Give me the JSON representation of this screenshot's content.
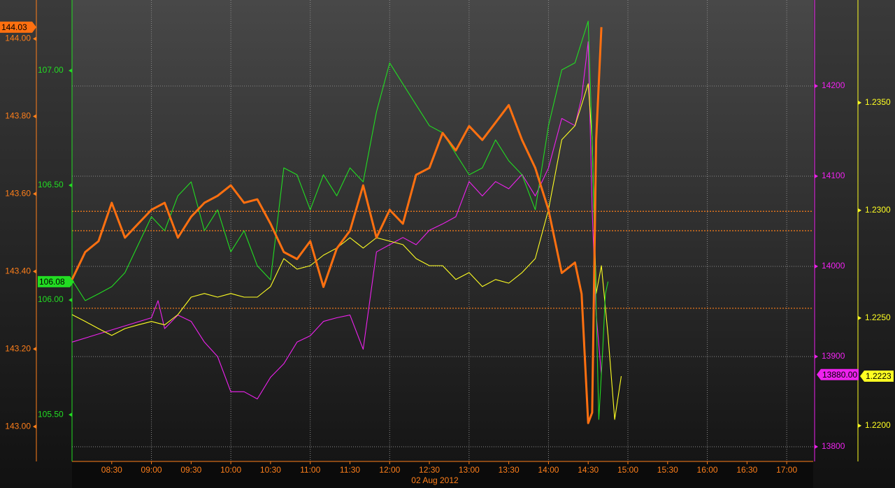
{
  "chart_data": {
    "type": "line",
    "x_label": "02 Aug 2012",
    "xlim": [
      "08:00",
      "17:20"
    ],
    "xticks": [
      "08:30",
      "09:00",
      "09:30",
      "10:00",
      "10:30",
      "11:00",
      "11:30",
      "12:00",
      "12:30",
      "13:00",
      "13:30",
      "14:00",
      "14:30",
      "15:00",
      "15:30",
      "16:00",
      "16:30",
      "17:00"
    ],
    "grid": true,
    "axes": [
      {
        "color": "#ff7f1a",
        "lim": [
          142.91,
          144.1
        ],
        "ticks": [
          {
            "value": 143.0,
            "label": "143.00"
          },
          {
            "value": 143.2,
            "label": "143.20"
          },
          {
            "value": 143.4,
            "label": "143.40"
          },
          {
            "value": 143.6,
            "label": "143.60"
          },
          {
            "value": 143.8,
            "label": "143.80"
          },
          {
            "value": 144.0,
            "label": "144.00"
          }
        ],
        "reference_lines": [
          143.555,
          143.505,
          143.305
        ]
      },
      {
        "color": "#22dd22",
        "lim": [
          105.296,
          107.308
        ],
        "ticks": [
          {
            "value": 105.5,
            "label": "105.50"
          },
          {
            "value": 106.0,
            "label": "106.00"
          },
          {
            "value": 106.5,
            "label": "106.50"
          },
          {
            "value": 107.0,
            "label": "107.00"
          }
        ]
      },
      {
        "color": "#ee22ee",
        "lim": [
          13783.7,
          14295.3
        ],
        "ticks": [
          13800,
          13900,
          14000,
          14100,
          14200
        ]
      },
      {
        "color": "#ffff22",
        "lim": [
          1.21834,
          1.23977
        ],
        "ticks": [
          {
            "value": 1.22,
            "label": "1.2200"
          },
          {
            "value": 1.225,
            "label": "1.2250"
          },
          {
            "value": 1.23,
            "label": "1.2300"
          },
          {
            "value": 1.235,
            "label": "1.2350"
          }
        ]
      }
    ],
    "series": [
      {
        "axis": 2,
        "color": "#ee22ee",
        "last_value_label": "13880.00",
        "x": [
          "08:00",
          "09:00",
          "09:05",
          "09:10",
          "09:20",
          "09:30",
          "09:40",
          "09:50",
          "10:00",
          "10:10",
          "10:20",
          "10:30",
          "10:40",
          "10:50",
          "11:00",
          "11:10",
          "11:20",
          "11:30",
          "11:40",
          "11:50",
          "12:00",
          "12:10",
          "12:20",
          "12:30",
          "12:40",
          "12:50",
          "13:00",
          "13:10",
          "13:20",
          "13:30",
          "13:40",
          "13:50",
          "14:00",
          "14:10",
          "14:20",
          "14:25",
          "14:30",
          "14:33",
          "14:36",
          "14:40"
        ],
        "values": [
          13916,
          13943,
          13962,
          13931,
          13946,
          13939,
          13916,
          13900,
          13861,
          13861,
          13853,
          13877,
          13892,
          13916,
          13923,
          13939,
          13943,
          13946,
          13908,
          14016,
          14024,
          14032,
          14024,
          14040,
          14047,
          14055,
          14094,
          14078,
          14094,
          14086,
          14102,
          14078,
          14109,
          14164,
          14156,
          14187,
          14249,
          14063,
          13947,
          13880
        ]
      },
      {
        "axis": 3,
        "color": "#ffff22",
        "last_value_label": "1.2223",
        "x": [
          "08:00",
          "08:10",
          "08:20",
          "08:30",
          "08:40",
          "08:50",
          "09:00",
          "09:10",
          "09:20",
          "09:30",
          "09:40",
          "09:50",
          "10:00",
          "10:10",
          "10:20",
          "10:30",
          "10:40",
          "10:50",
          "11:00",
          "11:10",
          "11:20",
          "11:30",
          "11:40",
          "11:50",
          "12:00",
          "12:10",
          "12:20",
          "12:30",
          "12:40",
          "12:50",
          "13:00",
          "13:10",
          "13:20",
          "13:30",
          "13:40",
          "13:50",
          "14:00",
          "14:10",
          "14:20",
          "14:25",
          "14:30",
          "14:33",
          "14:36",
          "14:40",
          "14:45",
          "14:50",
          "14:55"
        ],
        "values": [
          1.22516,
          1.22484,
          1.22451,
          1.22419,
          1.22451,
          1.22468,
          1.22484,
          1.22468,
          1.22516,
          1.22597,
          1.22614,
          1.22597,
          1.22614,
          1.22597,
          1.22597,
          1.22646,
          1.22776,
          1.22727,
          1.22743,
          1.22792,
          1.22825,
          1.22873,
          1.22825,
          1.22873,
          1.22857,
          1.22841,
          1.22776,
          1.22743,
          1.22743,
          1.22679,
          1.22711,
          1.22646,
          1.22679,
          1.22662,
          1.22711,
          1.22776,
          1.23003,
          1.23328,
          1.23393,
          1.2349,
          1.23588,
          1.23328,
          1.22614,
          1.22743,
          1.22419,
          1.22029,
          1.2223
        ]
      },
      {
        "axis": 1,
        "color": "#22dd22",
        "last_value_label": "106.08",
        "x": [
          "08:00",
          "08:10",
          "08:20",
          "08:30",
          "08:40",
          "08:50",
          "09:00",
          "09:10",
          "09:20",
          "09:30",
          "09:40",
          "09:50",
          "10:00",
          "10:10",
          "10:20",
          "10:30",
          "10:40",
          "10:50",
          "11:00",
          "11:10",
          "11:20",
          "11:30",
          "11:40",
          "11:50",
          "12:00",
          "12:10",
          "12:20",
          "12:30",
          "12:40",
          "12:50",
          "13:00",
          "13:10",
          "13:20",
          "13:30",
          "13:40",
          "13:50",
          "14:00",
          "14:10",
          "14:20",
          "14:30",
          "14:33",
          "14:38",
          "14:41",
          "14:43",
          "14:45"
        ],
        "values": [
          106.088,
          105.997,
          106.027,
          106.058,
          106.119,
          106.241,
          106.363,
          106.302,
          106.454,
          106.515,
          106.302,
          106.393,
          106.21,
          106.302,
          106.149,
          106.088,
          106.576,
          106.546,
          106.393,
          106.546,
          106.454,
          106.576,
          106.515,
          106.82,
          107.034,
          106.942,
          106.851,
          106.76,
          106.729,
          106.637,
          106.546,
          106.576,
          106.698,
          106.607,
          106.546,
          106.393,
          106.759,
          107.003,
          107.034,
          107.216,
          106.698,
          105.479,
          105.784,
          106.027,
          106.08
        ]
      },
      {
        "axis": 0,
        "color": "#ff7010",
        "last_value_label": "144.03",
        "x": [
          "08:00",
          "08:10",
          "08:20",
          "08:30",
          "08:40",
          "08:50",
          "09:00",
          "09:10",
          "09:20",
          "09:30",
          "09:40",
          "09:50",
          "10:00",
          "10:10",
          "10:20",
          "10:30",
          "10:40",
          "10:50",
          "11:00",
          "11:10",
          "11:20",
          "11:30",
          "11:40",
          "11:50",
          "12:00",
          "12:10",
          "12:20",
          "12:30",
          "12:40",
          "12:50",
          "13:00",
          "13:10",
          "13:20",
          "13:30",
          "13:40",
          "13:50",
          "14:00",
          "14:10",
          "14:20",
          "14:25",
          "14:30",
          "14:33",
          "14:36",
          "14:40"
        ],
        "values": [
          143.379,
          143.45,
          143.478,
          143.577,
          143.487,
          143.523,
          143.559,
          143.577,
          143.487,
          143.541,
          143.577,
          143.595,
          143.622,
          143.577,
          143.586,
          143.523,
          143.45,
          143.432,
          143.478,
          143.36,
          143.459,
          143.505,
          143.622,
          143.487,
          143.559,
          143.523,
          143.649,
          143.667,
          143.757,
          143.712,
          143.775,
          143.739,
          143.784,
          143.829,
          143.739,
          143.667,
          143.559,
          143.396,
          143.423,
          143.342,
          143.009,
          143.036,
          143.739,
          144.03
        ]
      }
    ]
  }
}
